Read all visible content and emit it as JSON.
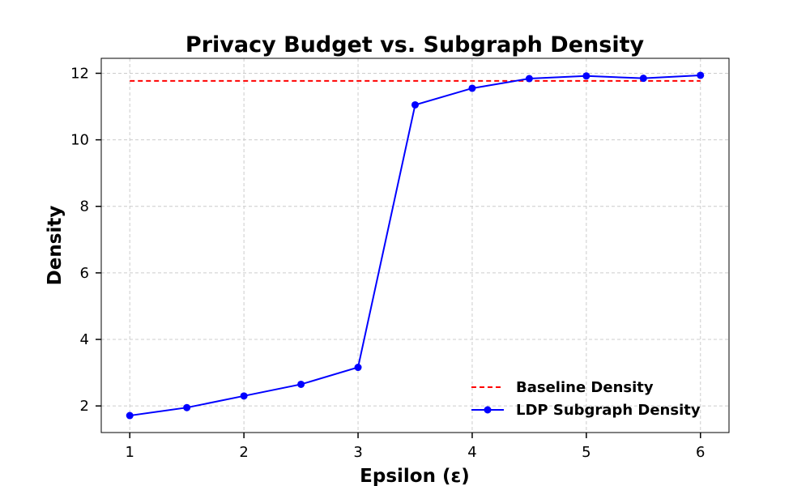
{
  "chart_data": {
    "type": "line",
    "title": "Privacy Budget vs. Subgraph Density",
    "xlabel": "Epsilon (ε)",
    "ylabel": "Density",
    "xlim": [
      0.75,
      6.25
    ],
    "ylim": [
      1.2,
      12.45
    ],
    "xticks": [
      1,
      2,
      3,
      4,
      5,
      6
    ],
    "yticks": [
      2,
      4,
      6,
      8,
      10,
      12
    ],
    "grid": true,
    "legend_position": "lower-right",
    "series": [
      {
        "name": "Baseline Density",
        "style": "dashed",
        "color": "#ff0000",
        "x": [
          1,
          6
        ],
        "y": [
          11.77,
          11.77
        ]
      },
      {
        "name": "LDP Subgraph Density",
        "style": "solid-with-markers",
        "color": "#0000ff",
        "x": [
          1.0,
          1.5,
          2.0,
          2.5,
          3.0,
          3.5,
          4.0,
          4.5,
          5.0,
          5.5,
          6.0
        ],
        "y": [
          1.71,
          1.95,
          2.3,
          2.65,
          3.16,
          11.05,
          11.55,
          11.84,
          11.92,
          11.85,
          11.94
        ]
      }
    ]
  }
}
